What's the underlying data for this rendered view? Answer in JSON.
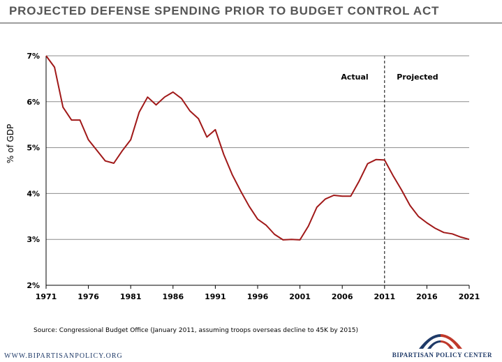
{
  "title": "PROJECTED DEFENSE SPENDING PRIOR TO BUDGET CONTROL ACT",
  "source": "Source: Congressional Budget Office (January 2011, assuming troops overseas decline to 45K by 2015)",
  "footer": {
    "url": "WWW.BIPARTISANPOLICY.ORG",
    "brand": "BIPARTISAN POLICY CENTER"
  },
  "colors": {
    "line": "#a01818",
    "grid": "#8c8c8c",
    "title": "#555555",
    "brand_blue": "#1f3a68",
    "brand_red": "#c0392b"
  },
  "chart_data": {
    "type": "line",
    "title": "PROJECTED DEFENSE SPENDING PRIOR TO BUDGET CONTROL ACT",
    "xlabel": "",
    "ylabel": "% of GDP",
    "xlim": [
      1971,
      2021
    ],
    "ylim": [
      2,
      7
    ],
    "x_ticks": [
      1971,
      1976,
      1981,
      1986,
      1991,
      1996,
      2001,
      2006,
      2011,
      2016,
      2021
    ],
    "y_ticks": [
      {
        "value": 2,
        "label": "2%"
      },
      {
        "value": 3,
        "label": "3%"
      },
      {
        "value": 4,
        "label": "4%"
      },
      {
        "value": 5,
        "label": "5%"
      },
      {
        "value": 6,
        "label": "6%"
      },
      {
        "value": 7,
        "label": "7%"
      }
    ],
    "grid": "horizontal",
    "divider": {
      "x": 2011,
      "left_label": "Actual",
      "right_label": "Projected"
    },
    "series": [
      {
        "name": "Defense spending (% of GDP)",
        "x": [
          1971,
          1972,
          1973,
          1974,
          1975,
          1976,
          1977,
          1978,
          1979,
          1980,
          1981,
          1982,
          1983,
          1984,
          1985,
          1986,
          1987,
          1988,
          1989,
          1990,
          1991,
          1992,
          1993,
          1994,
          1995,
          1996,
          1997,
          1998,
          1999,
          2000,
          2001,
          2002,
          2003,
          2004,
          2005,
          2006,
          2007,
          2008,
          2009,
          2010,
          2011,
          2012,
          2013,
          2014,
          2015,
          2016,
          2017,
          2018,
          2019,
          2020,
          2021
        ],
        "values": [
          7.0,
          6.75,
          5.88,
          5.6,
          5.6,
          5.17,
          4.94,
          4.71,
          4.66,
          4.93,
          5.17,
          5.77,
          6.1,
          5.93,
          6.1,
          6.21,
          6.07,
          5.8,
          5.63,
          5.23,
          5.39,
          4.85,
          4.41,
          4.05,
          3.72,
          3.44,
          3.31,
          3.11,
          2.99,
          3.0,
          2.99,
          3.29,
          3.7,
          3.88,
          3.96,
          3.94,
          3.94,
          4.27,
          4.65,
          4.74,
          4.73,
          4.39,
          4.08,
          3.74,
          3.5,
          3.36,
          3.24,
          3.15,
          3.12,
          3.05,
          3.0
        ]
      }
    ]
  }
}
